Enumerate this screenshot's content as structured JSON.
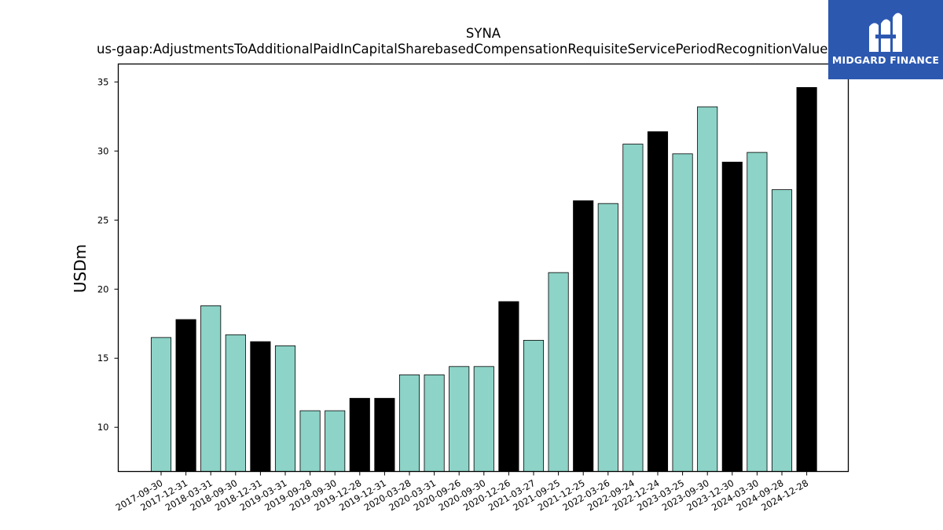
{
  "chart_data": {
    "type": "bar",
    "title": "SYNA",
    "subtitle": "us-gaap:AdjustmentsToAdditionalPaidInCapitalSharebasedCompensationRequisiteServicePeriodRecognitionValue",
    "xlabel": "",
    "ylabel": "USDm",
    "ylim": [
      6.8,
      36.3
    ],
    "yticks": [
      10,
      15,
      20,
      25,
      30,
      35
    ],
    "grid": false,
    "colors": {
      "default": "#8dd3c7",
      "highlight": "#000000",
      "edge": "#000000"
    },
    "categories": [
      "2017-09-30",
      "2017-12-31",
      "2018-03-31",
      "2018-09-30",
      "2018-12-31",
      "2019-03-31",
      "2019-09-28",
      "2019-09-30",
      "2019-12-28",
      "2019-12-31",
      "2020-03-28",
      "2020-03-31",
      "2020-09-26",
      "2020-09-30",
      "2020-12-26",
      "2021-03-27",
      "2021-09-25",
      "2021-12-25",
      "2022-03-26",
      "2022-09-24",
      "2022-12-24",
      "2023-03-25",
      "2023-09-30",
      "2023-12-30",
      "2024-03-30",
      "2024-09-28",
      "2024-12-28"
    ],
    "values": [
      16.5,
      17.8,
      18.8,
      16.7,
      16.2,
      15.9,
      11.2,
      11.2,
      12.1,
      12.1,
      13.8,
      13.8,
      14.4,
      14.4,
      19.1,
      16.3,
      21.2,
      26.4,
      26.2,
      30.5,
      31.4,
      29.8,
      33.2,
      29.2,
      29.9,
      27.2,
      34.6
    ],
    "highlighted": [
      false,
      true,
      false,
      false,
      true,
      false,
      false,
      false,
      true,
      true,
      false,
      false,
      false,
      false,
      true,
      false,
      false,
      true,
      false,
      false,
      true,
      false,
      false,
      true,
      false,
      false,
      true
    ]
  },
  "logo": {
    "text": "MIDGARD FINANCE",
    "icon": "midgard-logo-icon",
    "background": "#2c58b0"
  }
}
